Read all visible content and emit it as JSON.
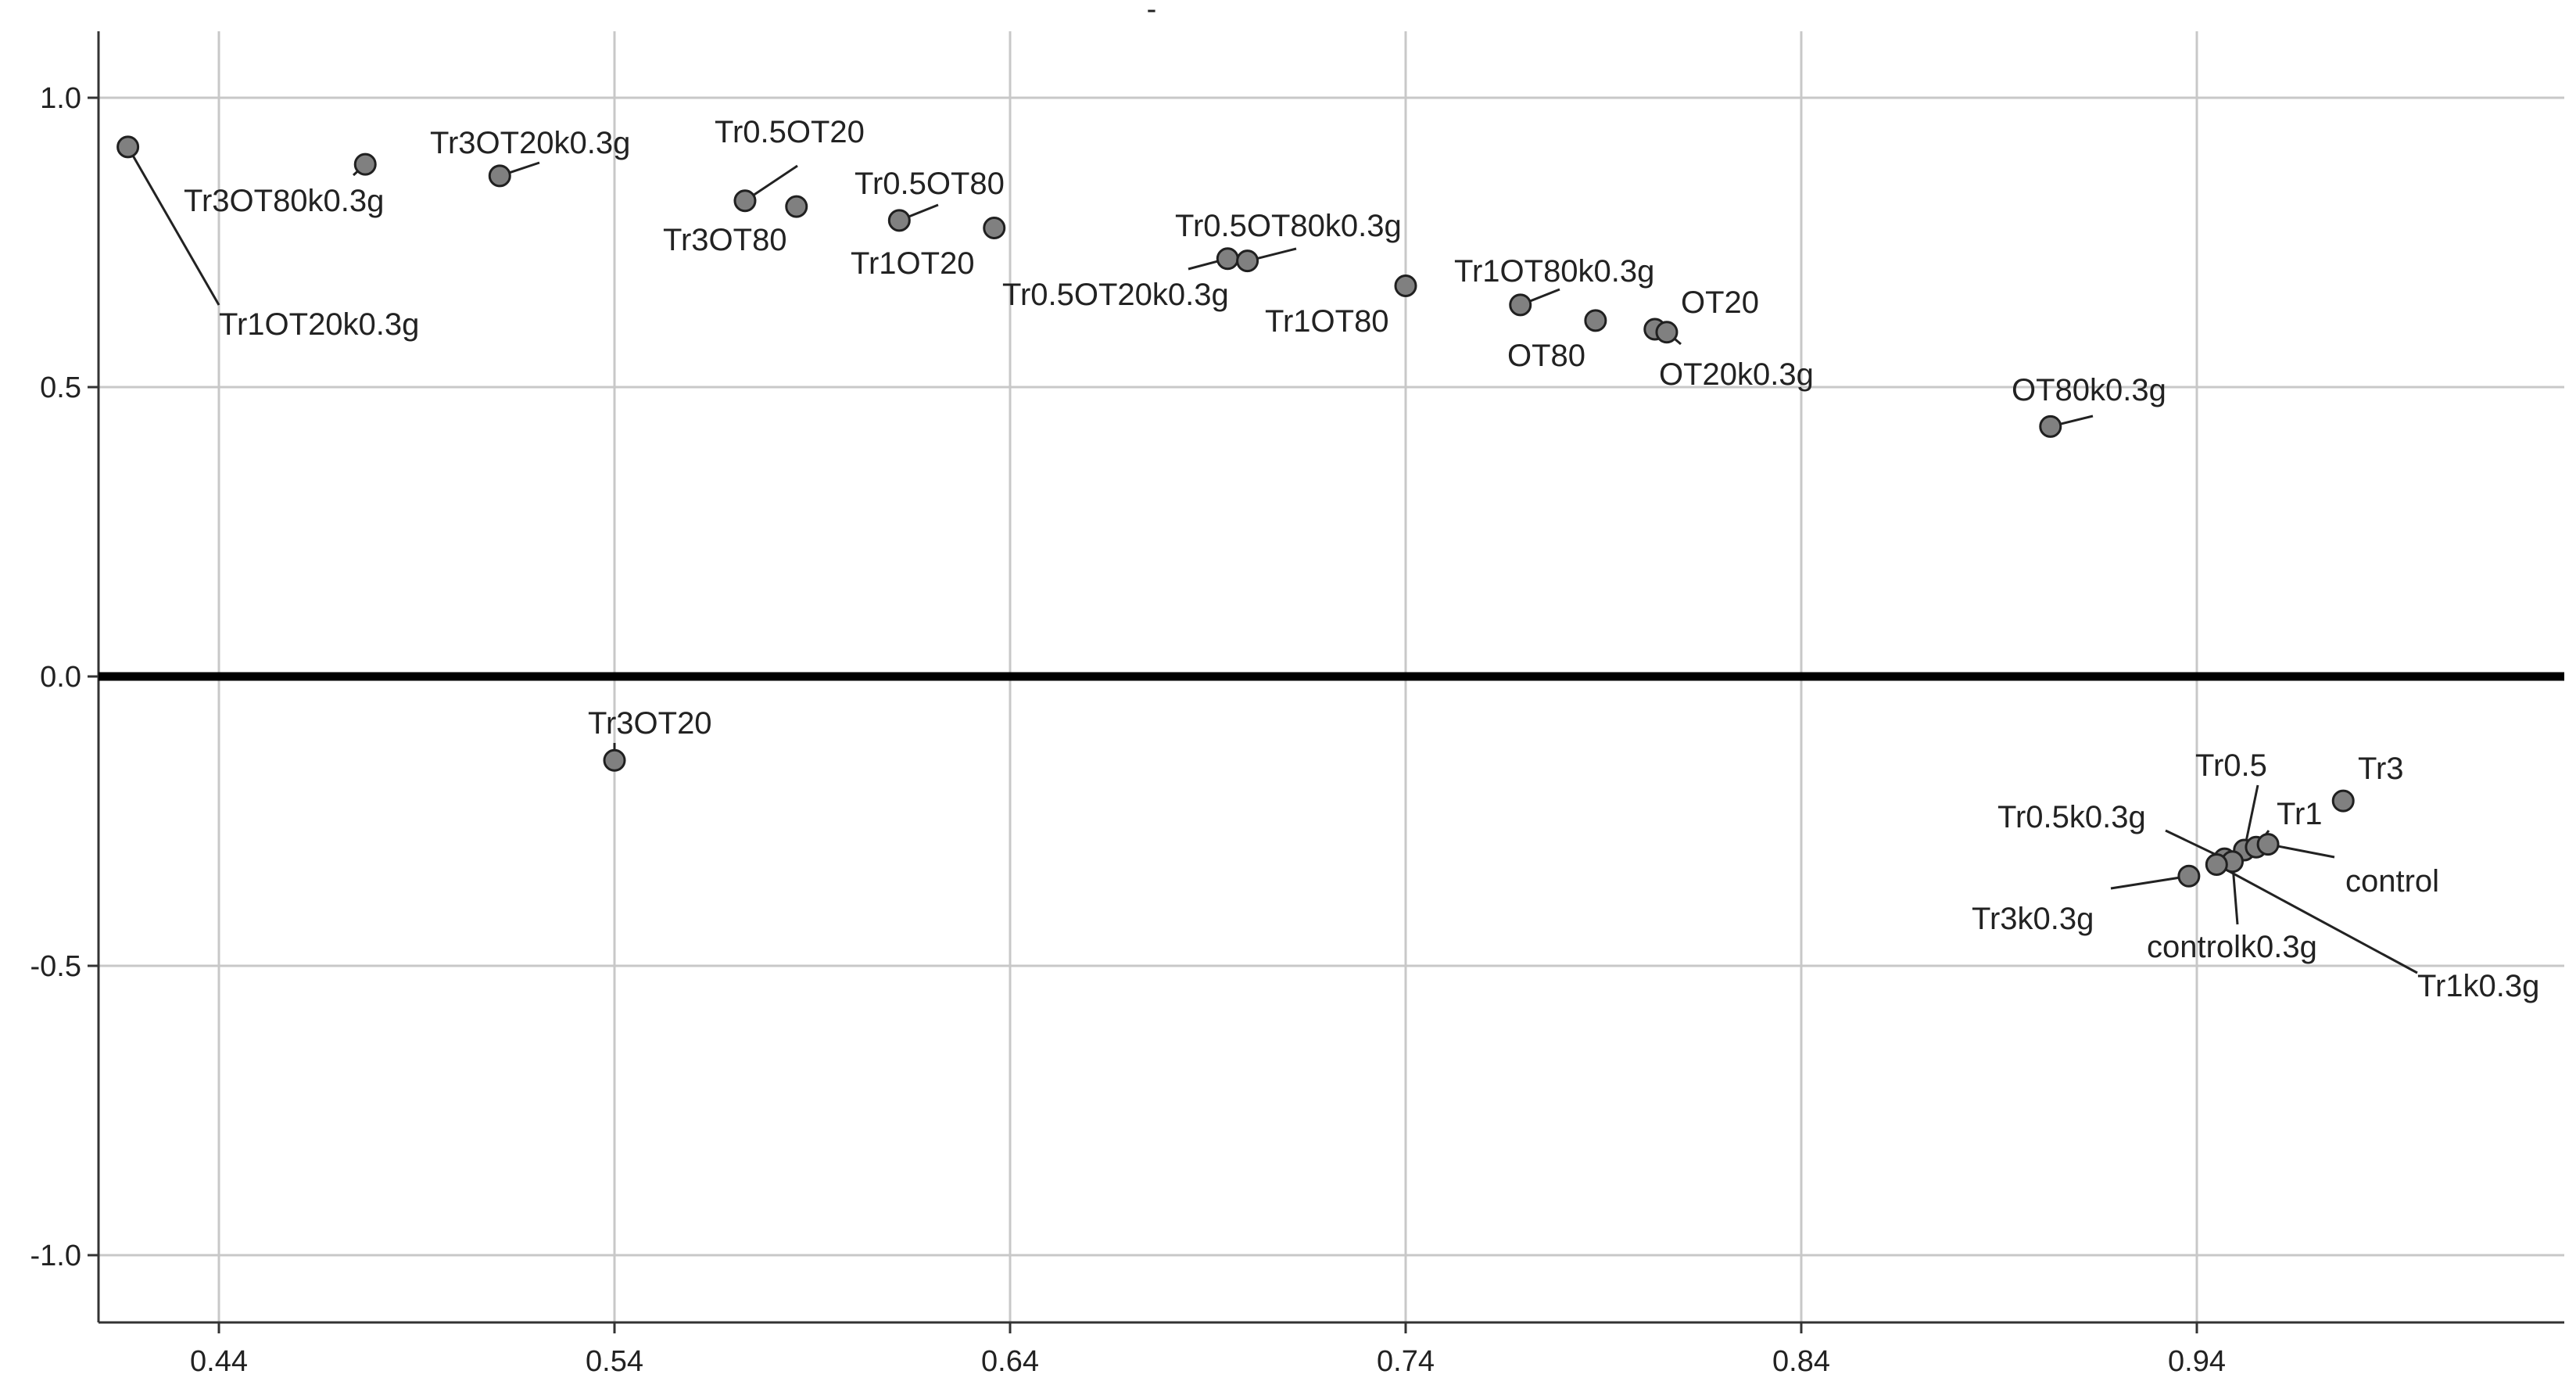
{
  "chart_data": {
    "type": "scatter",
    "title": "-",
    "xlabel": "",
    "ylabel": "",
    "xlim": [
      0.41,
      1.03
    ],
    "ylim": [
      -1.12,
      1.12
    ],
    "x_ticks": [
      0.44,
      0.54,
      0.64,
      0.74,
      0.84,
      0.94
    ],
    "y_ticks": [
      1.0,
      0.5,
      0.0,
      -0.5,
      -1.0
    ],
    "x_tick_labels": [
      "0.44",
      "0.54",
      "0.64",
      "0.74",
      "0.84",
      "0.94"
    ],
    "y_tick_labels": [
      "1.0",
      "0.5",
      "0.0",
      "-0.5",
      "-1.0"
    ],
    "grid": true,
    "reference_line_y": 0,
    "points": [
      {
        "label": "Tr1OT20k0.3g",
        "x": 0.417,
        "y": 0.915
      },
      {
        "label": "Tr3OT80k0.3g",
        "x": 0.477,
        "y": 0.885
      },
      {
        "label": "Tr3OT20k0.3g",
        "x": 0.511,
        "y": 0.865
      },
      {
        "label": "Tr0.5OT20",
        "x": 0.573,
        "y": 0.822
      },
      {
        "label": "Tr3OT80",
        "x": 0.586,
        "y": 0.812
      },
      {
        "label": "Tr0.5OT80",
        "x": 0.612,
        "y": 0.788
      },
      {
        "label": "Tr1OT20",
        "x": 0.636,
        "y": 0.775
      },
      {
        "label": "Tr0.5OT20k0.3g",
        "x": 0.695,
        "y": 0.722
      },
      {
        "label": "Tr0.5OT80k0.3g",
        "x": 0.7,
        "y": 0.718
      },
      {
        "label": "Tr1OT80",
        "x": 0.74,
        "y": 0.675
      },
      {
        "label": "Tr1OT80k0.3g",
        "x": 0.769,
        "y": 0.642
      },
      {
        "label": "OT80",
        "x": 0.788,
        "y": 0.615
      },
      {
        "label": "OT20",
        "x": 0.803,
        "y": 0.6
      },
      {
        "label": "OT20k0.3g",
        "x": 0.806,
        "y": 0.595
      },
      {
        "label": "OT80k0.3g",
        "x": 0.903,
        "y": 0.432
      },
      {
        "label": "Tr3OT20",
        "x": 0.54,
        "y": -0.145
      },
      {
        "label": "Tr3",
        "x": 0.977,
        "y": -0.215
      },
      {
        "label": "Tr0.5",
        "x": 0.952,
        "y": -0.3
      },
      {
        "label": "Tr1",
        "x": 0.955,
        "y": -0.295
      },
      {
        "label": "control",
        "x": 0.958,
        "y": -0.29
      },
      {
        "label": "Tr0.5k0.3g",
        "x": 0.947,
        "y": -0.315
      },
      {
        "label": "controlk0.3g",
        "x": 0.949,
        "y": -0.32
      },
      {
        "label": "Tr1k0.3g",
        "x": 0.945,
        "y": -0.325
      },
      {
        "label": "Tr3k0.3g",
        "x": 0.938,
        "y": -0.345
      }
    ]
  }
}
